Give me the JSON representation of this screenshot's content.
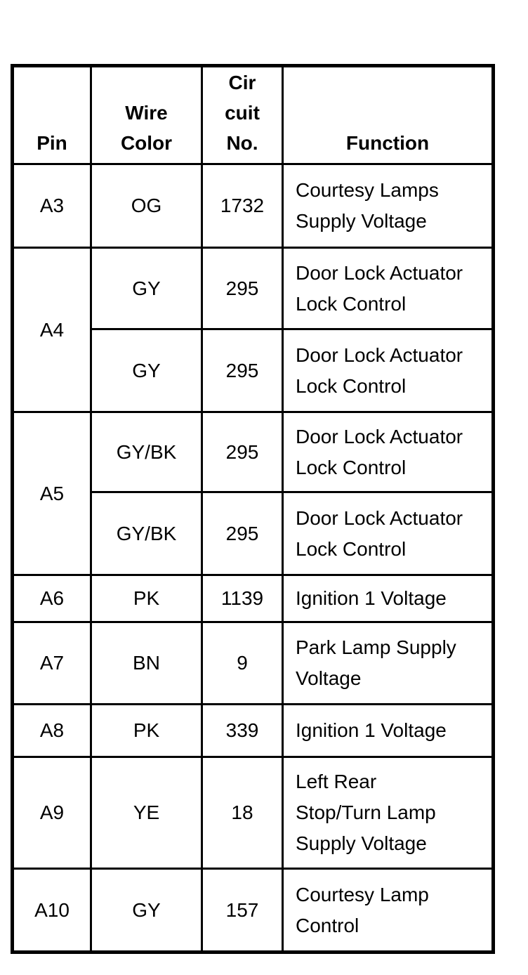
{
  "table": {
    "header": {
      "pin": "Pin",
      "wire_color": "Wire\nColor",
      "circuit_no": "Cir\ncuit\nNo.",
      "function": "Function"
    },
    "rows": [
      {
        "pin": "A3",
        "entries": [
          {
            "wire": "OG",
            "circuit": "1732",
            "function": "Courtesy Lamps\nSupply Voltage"
          }
        ]
      },
      {
        "pin": "A4",
        "entries": [
          {
            "wire": "GY",
            "circuit": "295",
            "function": "Door Lock Actuator\nLock Control"
          },
          {
            "wire": "GY",
            "circuit": "295",
            "function": "Door Lock Actuator\nLock Control"
          }
        ]
      },
      {
        "pin": "A5",
        "entries": [
          {
            "wire": "GY/BK",
            "circuit": "295",
            "function": "Door Lock Actuator\nLock Control"
          },
          {
            "wire": "GY/BK",
            "circuit": "295",
            "function": "Door Lock Actuator\nLock Control"
          }
        ]
      },
      {
        "pin": "A6",
        "entries": [
          {
            "wire": "PK",
            "circuit": "1139",
            "function": "Ignition 1 Voltage"
          }
        ]
      },
      {
        "pin": "A7",
        "entries": [
          {
            "wire": "BN",
            "circuit": "9",
            "function": "Park Lamp Supply\nVoltage"
          }
        ]
      },
      {
        "pin": "A8",
        "entries": [
          {
            "wire": "PK",
            "circuit": "339",
            "function": "Ignition 1 Voltage"
          }
        ]
      },
      {
        "pin": "A9",
        "entries": [
          {
            "wire": "YE",
            "circuit": "18",
            "function": "Left Rear\nStop/Turn Lamp\nSupply Voltage"
          }
        ]
      },
      {
        "pin": "A10",
        "entries": [
          {
            "wire": "GY",
            "circuit": "157",
            "function": "Courtesy Lamp\nControl"
          }
        ]
      }
    ],
    "colors": {
      "border": "#000000",
      "text": "#000000",
      "background": "#ffffff"
    }
  }
}
